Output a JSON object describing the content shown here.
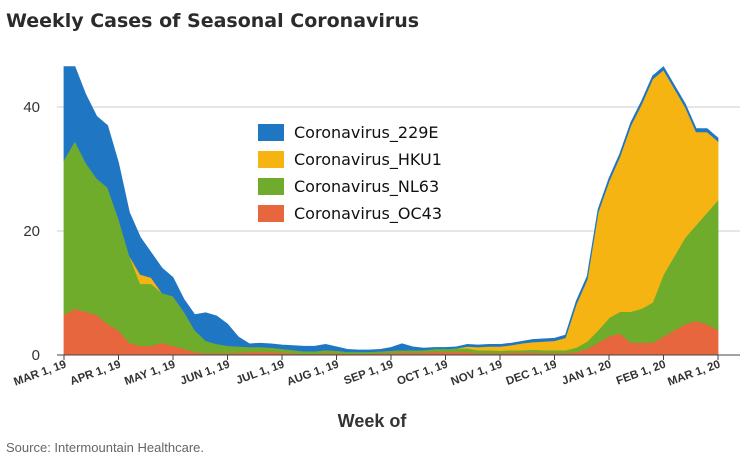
{
  "chart_data": {
    "type": "area",
    "stacked": true,
    "title": "Weekly Cases of Seasonal Coronavirus",
    "xlabel": "Week of",
    "ylabel": "",
    "source": "Source: Intermountain Healthcare.",
    "x_tick_labels": [
      "MAR 1, 19",
      "APR 1, 19",
      "MAY 1, 19",
      "JUN 1, 19",
      "JUL 1, 19",
      "AUG 1, 19",
      "SEP 1, 19",
      "OCT 1, 19",
      "NOV 1, 19",
      "DEC 1, 19",
      "JAN 1, 20",
      "FEB 1, 20",
      "MAR 1, 20"
    ],
    "y_tick_labels": [
      "0",
      "20",
      "40"
    ],
    "ylim": [
      0,
      50
    ],
    "grid": true,
    "legend_position": "center",
    "x_unit": "weeks since Mar 1, 2019",
    "x": [
      0,
      1,
      2,
      3,
      4,
      5,
      6,
      7,
      8,
      9,
      10,
      11,
      12,
      13,
      14,
      15,
      16,
      17,
      18,
      19,
      20,
      21,
      22,
      23,
      24,
      25,
      26,
      27,
      28,
      29,
      30,
      31,
      32,
      33,
      34,
      35,
      36,
      37,
      38,
      39,
      40,
      41,
      42,
      43,
      44,
      45,
      46,
      47,
      48,
      49,
      50,
      51,
      52,
      53,
      54,
      55,
      56,
      57,
      58,
      59,
      60
    ],
    "series": [
      {
        "name": "Coronavirus_OC43",
        "color": "#e8663d",
        "values": [
          6.5,
          7.5,
          7,
          6.5,
          5,
          4,
          2,
          1.5,
          1.5,
          2,
          1.5,
          1,
          0.5,
          0.3,
          0.3,
          0.3,
          0.4,
          0.5,
          0.5,
          0.5,
          0.4,
          0.3,
          0.2,
          0.2,
          0.3,
          0.3,
          0.2,
          0.2,
          0.2,
          0.3,
          0.3,
          0.4,
          0.4,
          0.4,
          0.5,
          0.5,
          0.5,
          0.5,
          0.3,
          0.3,
          0.3,
          0.4,
          0.4,
          0.4,
          0.3,
          0.3,
          0.3,
          0.5,
          1,
          2,
          3,
          3.5,
          2,
          2,
          2,
          3,
          4,
          5,
          5.5,
          5,
          4
        ]
      },
      {
        "name": "Coronavirus_NL63",
        "color": "#6fac2b",
        "values": [
          25,
          27,
          24,
          22,
          22,
          18,
          14,
          10,
          10,
          8,
          8,
          6,
          3.5,
          2,
          1.5,
          1.2,
          1,
          0.8,
          0.8,
          0.7,
          0.6,
          0.5,
          0.4,
          0.4,
          0.5,
          0.4,
          0.3,
          0.3,
          0.3,
          0.3,
          0.4,
          0.4,
          0.4,
          0.4,
          0.5,
          0.5,
          0.6,
          0.6,
          0.5,
          0.5,
          0.4,
          0.4,
          0.4,
          0.5,
          0.5,
          0.5,
          0.5,
          0.7,
          1.2,
          2,
          3,
          3.5,
          5,
          5.5,
          6.5,
          10,
          12,
          14,
          15.5,
          18,
          21
        ]
      },
      {
        "name": "Coronavirus_HKU1",
        "color": "#f5b412",
        "values": [
          0,
          0,
          0,
          0,
          0,
          0,
          0,
          1.5,
          1,
          0,
          0,
          0,
          0,
          0,
          0,
          0,
          0,
          0,
          0,
          0,
          0,
          0,
          0,
          0,
          0,
          0,
          0,
          0,
          0,
          0,
          0,
          0,
          0,
          0,
          0,
          0,
          0,
          0.3,
          0.5,
          0.6,
          0.7,
          0.8,
          1.1,
          1.2,
          1.4,
          1.5,
          2,
          7,
          10,
          19,
          22,
          25,
          30,
          33,
          36,
          33,
          27,
          21,
          15,
          13,
          9.5
        ]
      },
      {
        "name": "Coronavirus_229E",
        "color": "#1f77c4",
        "values": [
          15,
          12,
          11,
          10,
          10,
          9,
          7,
          6,
          4,
          4,
          3,
          2,
          2.5,
          4.5,
          4.5,
          3.5,
          1.5,
          0.5,
          0.6,
          0.6,
          0.6,
          0.7,
          0.8,
          0.8,
          0.9,
          0.6,
          0.4,
          0.3,
          0.3,
          0.3,
          0.5,
          1,
          0.5,
          0.3,
          0.2,
          0.2,
          0.2,
          0.3,
          0.3,
          0.3,
          0.3,
          0.3,
          0.3,
          0.4,
          0.4,
          0.4,
          0.4,
          0.5,
          0.5,
          0.5,
          0.5,
          0.5,
          0.5,
          0.5,
          0.5,
          0.5,
          0.5,
          0.5,
          0.5,
          0.5,
          0.5
        ]
      }
    ]
  }
}
